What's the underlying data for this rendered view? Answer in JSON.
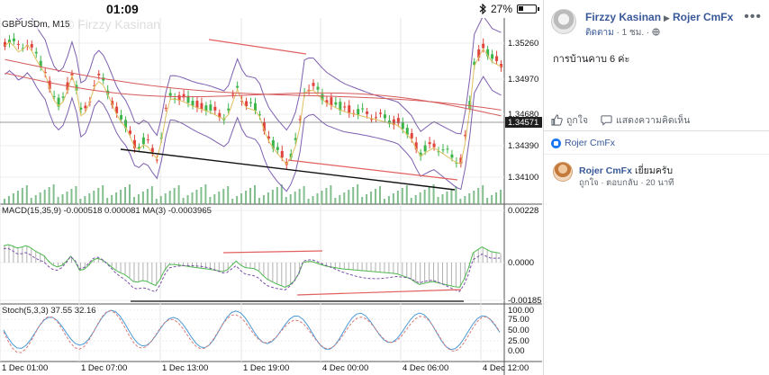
{
  "status_bar": {
    "time": "01:09",
    "bluetooth_icon": "bluetooth-icon",
    "battery_text": "27%",
    "battery_icon": "battery-icon"
  },
  "chart": {
    "symbol_label": "GBPUSDm, M15",
    "watermark": "© Firzzy Kasinan",
    "macd_label": "MACD(15,35,9) -0.000518 0.000081 MA(3) -0.0003965",
    "stoch_label": "Stoch(5,3,3) 37.55 32.16",
    "price_ticks": [
      "1.35260",
      "1.34970",
      "1.34680",
      "1.34390",
      "1.34100"
    ],
    "current_price": "1.34571",
    "macd_ticks": [
      "0.00228",
      "0.0000",
      "-0.00185"
    ],
    "stoch_ticks": [
      "100.00",
      "75.00",
      "50.00",
      "25.00",
      "0.00"
    ],
    "time_ticks": [
      "1 Dec 01:00",
      "1 Dec 07:00",
      "1 Dec 13:00",
      "1 Dec 19:00",
      "4 Dec 00:00",
      "4 Dec 06:00",
      "4 Dec 12:00"
    ],
    "colors": {
      "bull": "#3cb64a",
      "bear": "#e0443c",
      "bollinger": "#7d5fb0",
      "ma_red": "#d65a5a",
      "ma_yellow": "#e0c060",
      "macd_green": "#4fb84f",
      "signal": "#7b4fa8",
      "stoch_main": "#4b9bd8",
      "stoch_signal": "#d97a7a",
      "trend_red": "#e26060",
      "trend_black": "#111111"
    }
  },
  "post": {
    "author": "Firzzy Kasinan",
    "target": "Rojer CmFx",
    "follow_label": "ติดตาม",
    "time_label": "1 ชม.",
    "more_icon": "more-options-icon",
    "text": "การบ้านคาบ 6 ค่ะ",
    "like_label": "ถูกใจ",
    "comment_label": "แสดงความคิดเห็น",
    "liker_name": "Rojer CmFx",
    "comment": {
      "author": "Rojer CmFx",
      "text": "เยี่ยมครับ",
      "like_label": "ถูกใจ",
      "reply_label": "ตอบกลับ",
      "time": "20 นาที"
    }
  }
}
